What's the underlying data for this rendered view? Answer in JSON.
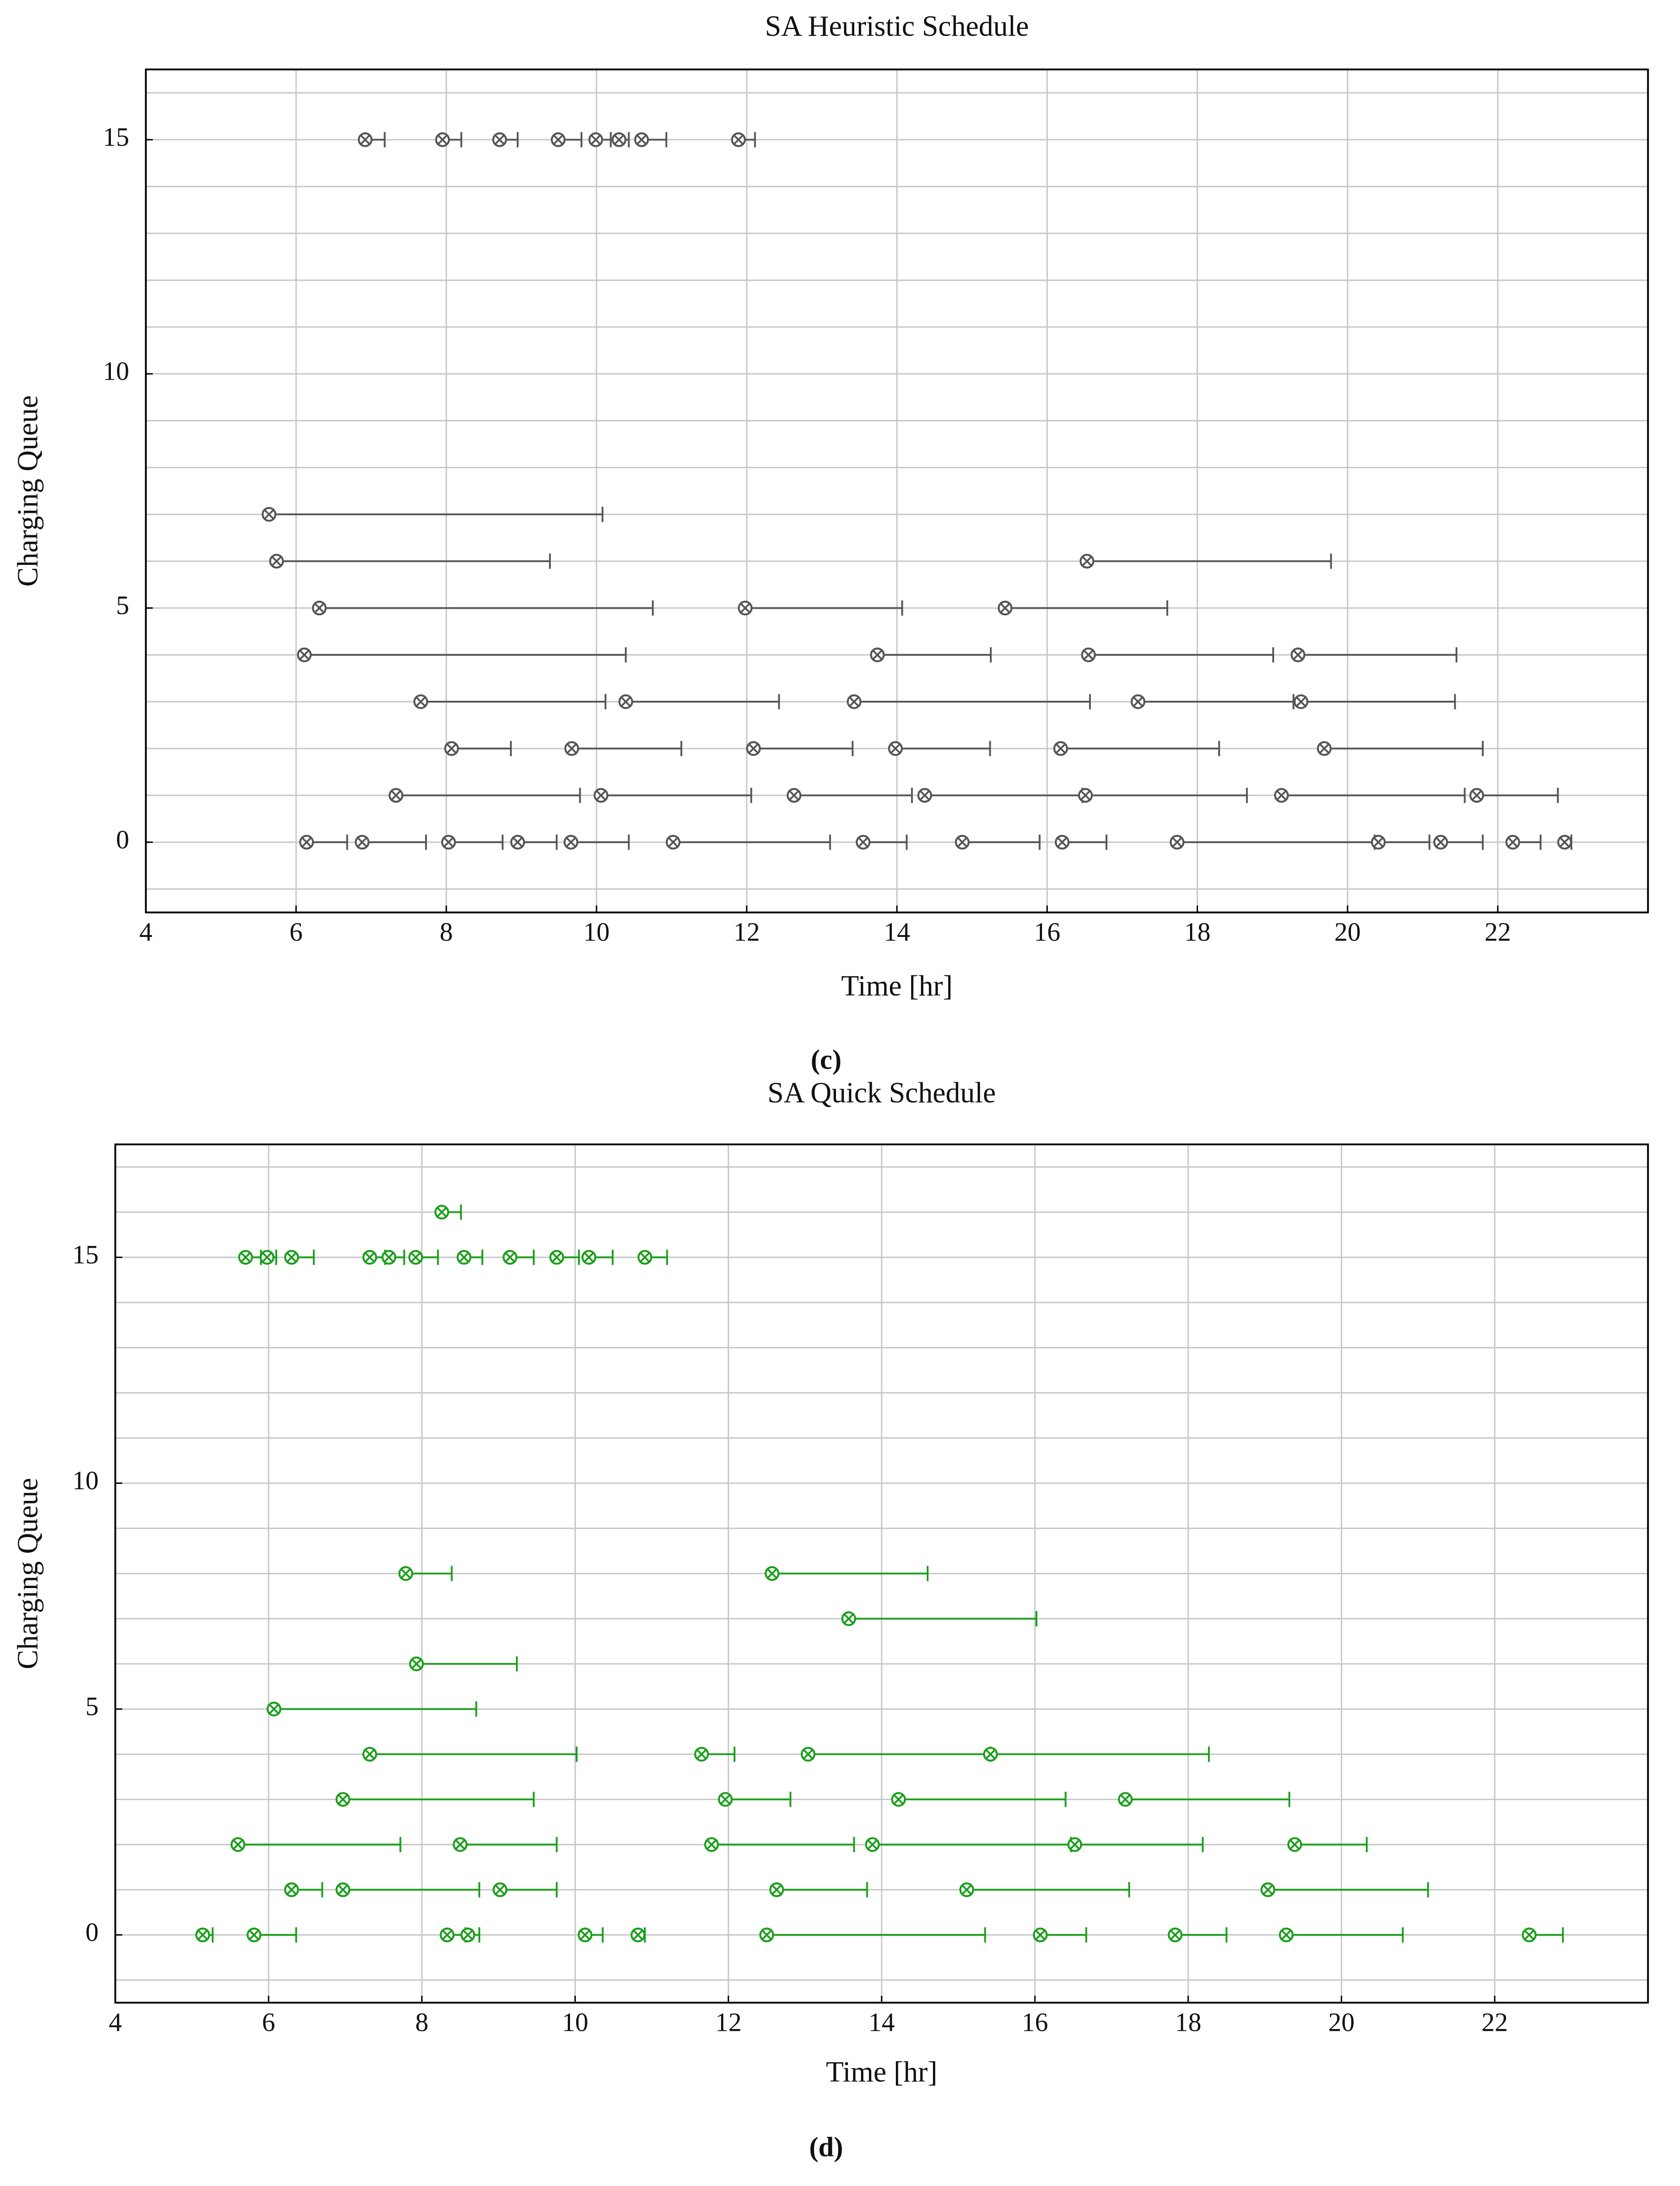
{
  "chart_data": [
    {
      "type": "interval",
      "title": "SA Heuristic Schedule",
      "caption": "(c)",
      "xlabel": "Time [hr]",
      "ylabel": "Charging Queue",
      "color": "#555555",
      "grid": true,
      "xlim": [
        4,
        24
      ],
      "ylim": [
        -1.5,
        16.5
      ],
      "xticks": [
        4,
        6,
        8,
        10,
        12,
        14,
        16,
        18,
        20,
        22
      ],
      "yticks": [
        0,
        5,
        10,
        15
      ],
      "y_minor_ticks": [
        -1,
        0,
        1,
        2,
        3,
        4,
        5,
        6,
        7,
        8,
        9,
        10,
        11,
        12,
        13,
        14,
        15,
        16
      ],
      "intervals": [
        [
          15,
          6.92,
          7.18
        ],
        [
          15,
          7.95,
          8.2
        ],
        [
          15,
          8.71,
          8.95
        ],
        [
          15,
          9.49,
          9.8
        ],
        [
          15,
          9.99,
          10.19
        ],
        [
          15,
          10.3,
          10.43
        ],
        [
          15,
          10.6,
          10.93
        ],
        [
          15,
          11.89,
          12.11
        ],
        [
          7,
          5.64,
          10.08
        ],
        [
          6,
          5.74,
          9.38
        ],
        [
          6,
          16.53,
          19.78
        ],
        [
          5,
          6.31,
          10.75
        ],
        [
          5,
          11.98,
          14.07
        ],
        [
          5,
          15.44,
          17.6
        ],
        [
          4,
          6.11,
          10.39
        ],
        [
          4,
          13.74,
          15.25
        ],
        [
          4,
          16.55,
          19.01
        ],
        [
          4,
          19.34,
          21.45
        ],
        [
          3,
          7.66,
          10.12
        ],
        [
          3,
          10.39,
          12.43
        ],
        [
          3,
          13.43,
          16.57
        ],
        [
          3,
          17.21,
          19.28
        ],
        [
          3,
          19.38,
          21.43
        ],
        [
          2,
          8.07,
          8.86
        ],
        [
          2,
          9.67,
          11.13
        ],
        [
          2,
          12.09,
          13.41
        ],
        [
          2,
          13.98,
          15.24
        ],
        [
          2,
          16.18,
          18.29
        ],
        [
          2,
          19.69,
          21.8
        ],
        [
          1,
          7.33,
          9.78
        ],
        [
          1,
          10.06,
          12.06
        ],
        [
          1,
          12.63,
          14.2
        ],
        [
          1,
          14.37,
          16.47
        ],
        [
          1,
          16.51,
          18.66
        ],
        [
          1,
          19.12,
          21.56
        ],
        [
          1,
          21.72,
          22.8
        ],
        [
          0,
          6.14,
          6.68
        ],
        [
          0,
          6.88,
          7.73
        ],
        [
          0,
          8.03,
          8.75
        ],
        [
          0,
          8.95,
          9.47
        ],
        [
          0,
          9.66,
          10.43
        ],
        [
          0,
          11.02,
          13.11
        ],
        [
          0,
          13.55,
          14.13
        ],
        [
          0,
          14.87,
          15.9
        ],
        [
          0,
          16.2,
          16.79
        ],
        [
          0,
          17.73,
          20.36
        ],
        [
          0,
          20.41,
          21.09
        ],
        [
          0,
          21.24,
          21.8
        ],
        [
          0,
          22.2,
          22.57
        ],
        [
          0,
          22.89,
          22.98
        ]
      ]
    },
    {
      "type": "interval",
      "title": "SA Quick Schedule",
      "caption": "(d)",
      "xlabel": "Time [hr]",
      "ylabel": "Charging Queue",
      "color": "#1a9e1a",
      "grid": true,
      "xlim": [
        4,
        24
      ],
      "ylim": [
        -1.5,
        17.5
      ],
      "xticks": [
        4,
        6,
        8,
        10,
        12,
        14,
        16,
        18,
        20,
        22
      ],
      "yticks": [
        0,
        5,
        10,
        15
      ],
      "y_minor_ticks": [
        -1,
        0,
        1,
        2,
        3,
        4,
        5,
        6,
        7,
        8,
        9,
        10,
        11,
        12,
        13,
        14,
        15,
        16,
        17
      ],
      "intervals": [
        [
          16,
          8.26,
          8.51
        ],
        [
          15,
          5.7,
          5.9
        ],
        [
          15,
          5.98,
          6.1
        ],
        [
          15,
          6.3,
          6.59
        ],
        [
          15,
          7.32,
          7.52
        ],
        [
          15,
          7.57,
          7.77
        ],
        [
          15,
          7.92,
          8.21
        ],
        [
          15,
          8.55,
          8.79
        ],
        [
          15,
          9.15,
          9.46
        ],
        [
          15,
          9.76,
          10.05
        ],
        [
          15,
          10.18,
          10.49
        ],
        [
          15,
          10.91,
          11.2
        ],
        [
          8,
          7.79,
          8.39
        ],
        [
          8,
          12.57,
          14.6
        ],
        [
          7,
          13.57,
          16.02
        ],
        [
          6,
          7.93,
          9.24
        ],
        [
          5,
          6.07,
          8.71
        ],
        [
          4,
          7.32,
          10.02
        ],
        [
          4,
          11.65,
          12.08
        ],
        [
          4,
          13.04,
          15.42
        ],
        [
          4,
          15.42,
          18.27
        ],
        [
          3,
          6.97,
          9.46
        ],
        [
          3,
          11.96,
          12.81
        ],
        [
          3,
          14.22,
          16.4
        ],
        [
          3,
          17.18,
          19.32
        ],
        [
          2,
          5.6,
          7.72
        ],
        [
          2,
          8.5,
          9.76
        ],
        [
          2,
          11.78,
          13.64
        ],
        [
          2,
          13.88,
          16.47
        ],
        [
          2,
          16.52,
          18.19
        ],
        [
          2,
          19.39,
          20.33
        ],
        [
          1,
          6.3,
          6.7
        ],
        [
          1,
          6.97,
          8.75
        ],
        [
          1,
          9.02,
          9.76
        ],
        [
          1,
          12.63,
          13.81
        ],
        [
          1,
          15.11,
          17.23
        ],
        [
          1,
          19.04,
          21.13
        ],
        [
          0,
          5.14,
          5.27
        ],
        [
          0,
          5.81,
          6.36
        ],
        [
          0,
          8.33,
          8.57
        ],
        [
          0,
          8.6,
          8.75
        ],
        [
          0,
          10.13,
          10.36
        ],
        [
          0,
          10.82,
          10.91
        ],
        [
          0,
          12.5,
          15.35
        ],
        [
          0,
          16.07,
          16.67
        ],
        [
          0,
          17.83,
          18.5
        ],
        [
          0,
          19.28,
          20.8
        ],
        [
          0,
          22.45,
          22.89
        ]
      ]
    }
  ]
}
